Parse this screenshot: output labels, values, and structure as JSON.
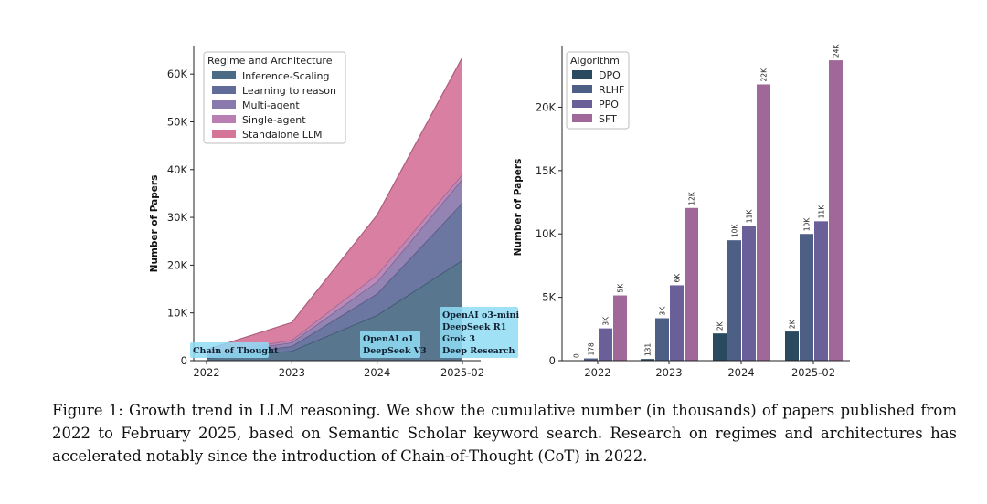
{
  "chart_data": [
    {
      "type": "area",
      "stacked": true,
      "x": [
        "2022",
        "2023",
        "2024",
        "2025-02"
      ],
      "ylabel": "Number of Papers",
      "ylim": [
        0,
        65000
      ],
      "yticks": [
        0,
        10000,
        20000,
        30000,
        40000,
        50000,
        60000
      ],
      "ytick_labels": [
        "0",
        "10K",
        "20K",
        "30K",
        "40K",
        "50K",
        "60K"
      ],
      "grid": false,
      "legend_title": "Regime and Architecture",
      "legend_position": "top-left",
      "series": [
        {
          "name": "Inference-Scaling",
          "color": "#4a6b84",
          "values": [
            500,
            2000,
            9500,
            21000
          ]
        },
        {
          "name": "Learning to reason",
          "color": "#5f6b99",
          "values": [
            300,
            1000,
            4500,
            12000
          ]
        },
        {
          "name": "Multi-agent",
          "color": "#8a79ad",
          "values": [
            300,
            800,
            2500,
            5000
          ]
        },
        {
          "name": "Single-agent",
          "color": "#b77fb3",
          "values": [
            200,
            500,
            1500,
            1000
          ]
        },
        {
          "name": "Standalone LLM",
          "color": "#d6759a",
          "values": [
            1000,
            3700,
            12500,
            24500
          ]
        }
      ],
      "annotations": [
        {
          "x": "2022",
          "y": 2500,
          "lines": [
            "Chain of Thought"
          ]
        },
        {
          "x": "2024",
          "y": 3800,
          "lines": [
            "OpenAI o1",
            "DeepSeek V3"
          ]
        },
        {
          "x": "2025-02",
          "y": 6500,
          "lines": [
            "OpenAI o3-mini",
            "DeepSeek R1",
            "Grok 3",
            "Deep Research"
          ]
        }
      ]
    },
    {
      "type": "bar",
      "categories": [
        "2022",
        "2023",
        "2024",
        "2025-02"
      ],
      "ylabel": "Number of Papers",
      "ylim": [
        0,
        24500
      ],
      "yticks": [
        0,
        5000,
        10000,
        15000,
        20000
      ],
      "ytick_labels": [
        "0",
        "5K",
        "10K",
        "15K",
        "20K"
      ],
      "grid": false,
      "legend_title": "Algorithm",
      "legend_position": "top-left",
      "series": [
        {
          "name": "DPO",
          "color": "#2a4a60",
          "values": [
            0,
            131,
            2150,
            2300
          ],
          "labels": [
            "0",
            "131",
            "2K",
            "2K"
          ]
        },
        {
          "name": "RLHF",
          "color": "#4d5f84",
          "values": [
            178,
            3350,
            9500,
            10000
          ],
          "labels": [
            "178",
            "3K",
            "10K",
            "10K"
          ]
        },
        {
          "name": "PPO",
          "color": "#6b5f9a",
          "values": [
            2550,
            5950,
            10650,
            11000
          ],
          "labels": [
            "3K",
            "6K",
            "11K",
            "11K"
          ]
        },
        {
          "name": "SFT",
          "color": "#a06899",
          "values": [
            5150,
            12050,
            21800,
            23700
          ],
          "labels": [
            "5K",
            "12K",
            "22K",
            "24K"
          ]
        }
      ]
    }
  ],
  "caption": "Figure 1:  Growth trend in LLM reasoning.  We show the cumulative number (in thousands) of papers published from 2022 to February 2025, based on Semantic Scholar keyword search. Research on regimes and architectures has accelerated notably since the introduction of Chain-of-Thought (CoT) in 2022."
}
